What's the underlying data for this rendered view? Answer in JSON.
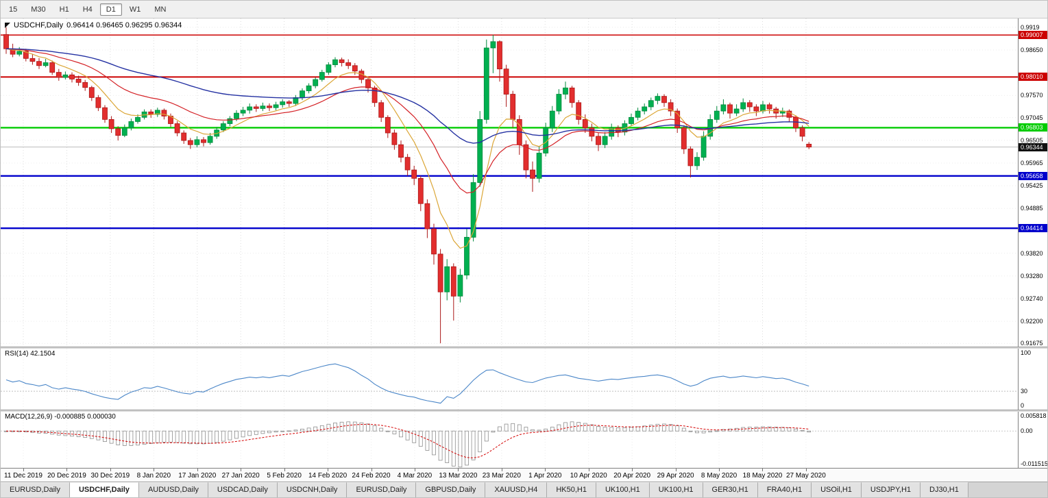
{
  "toolbar": {
    "timeframes": [
      {
        "label": "15",
        "active": false
      },
      {
        "label": "M30",
        "active": false
      },
      {
        "label": "H1",
        "active": false
      },
      {
        "label": "H4",
        "active": false
      },
      {
        "label": "D1",
        "active": true
      },
      {
        "label": "W1",
        "active": false
      },
      {
        "label": "MN",
        "active": false
      }
    ]
  },
  "chart": {
    "title": {
      "symbol_period": "USDCHF,Daily",
      "ohlc": "0.96414 0.96465 0.96295 0.96344"
    },
    "colors": {
      "bull": "#00b050",
      "bull_border": "#00893c",
      "bear": "#e22e2e",
      "bear_border": "#ab1717",
      "ma_fast": "#dba636",
      "ma_mid": "#d42025",
      "ma_slow": "#2431a2",
      "hline_red": "#cc0000",
      "hline_green": "#00cc00",
      "hline_blue": "#0000cc",
      "bid_tag": "#111111",
      "bid_line": "#bdbdbd",
      "rsi_line": "#4a86c8",
      "macd_bar_stroke": "#8c8c8c",
      "macd_signal": "#d40000",
      "grid": "#dcdcdc"
    },
    "price_axis_labels": [
      "0.9919",
      "0.98650",
      "0.97570",
      "0.97045",
      "0.96505",
      "0.95965",
      "0.95425",
      "0.94885",
      "0.93820",
      "0.93280",
      "0.92740",
      "0.92200",
      "0.91675"
    ],
    "hlines": [
      {
        "price": 0.99007,
        "label": "0.99007",
        "color": "#cc0000",
        "width": 1.4
      },
      {
        "price": 0.9801,
        "label": "0.98010",
        "color": "#cc0000",
        "width": 2
      },
      {
        "price": 0.96803,
        "label": "0.96803",
        "color": "#00cc00",
        "width": 2.4
      },
      {
        "price": 0.95658,
        "label": "0.95658",
        "color": "#0000cc",
        "width": 2.4
      },
      {
        "price": 0.94414,
        "label": "0.94414",
        "color": "#0000cc",
        "width": 2.4
      }
    ],
    "bid": {
      "price": 0.96344,
      "label": "0.96344"
    },
    "dates": [
      "11 Dec 2019",
      "20 Dec 2019",
      "30 Dec 2019",
      "8 Jan 2020",
      "17 Jan 2020",
      "27 Jan 2020",
      "5 Feb 2020",
      "14 Feb 2020",
      "24 Feb 2020",
      "4 Mar 2020",
      "13 Mar 2020",
      "23 Mar 2020",
      "1 Apr 2020",
      "10 Apr 2020",
      "20 Apr 2020",
      "29 Apr 2020",
      "8 May 2020",
      "18 May 2020",
      "27 May 2020"
    ],
    "rsi": {
      "title": "RSI(14) 42.1504",
      "period": 14,
      "axis_labels": [
        {
          "value": 100,
          "text": "100"
        },
        {
          "value": 30,
          "text": "30"
        },
        {
          "value": 0,
          "text": "0"
        }
      ],
      "level": 30
    },
    "macd": {
      "title": "MACD(12,26,9) -0.000885 0.000030",
      "fast": 12,
      "slow": 26,
      "signal": 9,
      "axis_labels": [
        {
          "value": 0.005818,
          "text": "0.005818"
        },
        {
          "value": 0,
          "text": "0.00"
        },
        {
          "value": -0.011515,
          "text": "-0.011515"
        }
      ]
    },
    "candles": [
      [
        0.9902,
        0.9919,
        0.9856,
        0.9868
      ],
      [
        0.9868,
        0.988,
        0.9848,
        0.9855
      ],
      [
        0.9855,
        0.9872,
        0.985,
        0.9862
      ],
      [
        0.9862,
        0.9868,
        0.9838,
        0.9845
      ],
      [
        0.9845,
        0.9856,
        0.983,
        0.9838
      ],
      [
        0.9838,
        0.9846,
        0.982,
        0.9828
      ],
      [
        0.9828,
        0.9844,
        0.9824,
        0.9835
      ],
      [
        0.9835,
        0.984,
        0.9806,
        0.9812
      ],
      [
        0.9812,
        0.982,
        0.9792,
        0.98
      ],
      [
        0.98,
        0.9814,
        0.9795,
        0.9806
      ],
      [
        0.9806,
        0.9812,
        0.9788,
        0.9796
      ],
      [
        0.9796,
        0.9804,
        0.978,
        0.9788
      ],
      [
        0.9788,
        0.9794,
        0.9768,
        0.9776
      ],
      [
        0.9776,
        0.978,
        0.9744,
        0.9752
      ],
      [
        0.9752,
        0.9758,
        0.972,
        0.9728
      ],
      [
        0.9728,
        0.9734,
        0.9692,
        0.97
      ],
      [
        0.97,
        0.9708,
        0.9668,
        0.9678
      ],
      [
        0.9678,
        0.9684,
        0.965,
        0.9662
      ],
      [
        0.9662,
        0.9688,
        0.9658,
        0.968
      ],
      [
        0.968,
        0.9702,
        0.9674,
        0.9695
      ],
      [
        0.9695,
        0.9712,
        0.969,
        0.9705
      ],
      [
        0.9705,
        0.9724,
        0.97,
        0.9718
      ],
      [
        0.9718,
        0.9724,
        0.9704,
        0.9712
      ],
      [
        0.9712,
        0.9728,
        0.9706,
        0.9722
      ],
      [
        0.9722,
        0.9726,
        0.97,
        0.9708
      ],
      [
        0.9708,
        0.9714,
        0.9682,
        0.969
      ],
      [
        0.969,
        0.9696,
        0.966,
        0.9668
      ],
      [
        0.9668,
        0.9674,
        0.9642,
        0.965
      ],
      [
        0.965,
        0.9656,
        0.963,
        0.964
      ],
      [
        0.964,
        0.966,
        0.9634,
        0.9652
      ],
      [
        0.9652,
        0.9658,
        0.9636,
        0.9645
      ],
      [
        0.9645,
        0.9668,
        0.964,
        0.966
      ],
      [
        0.966,
        0.9682,
        0.9654,
        0.9675
      ],
      [
        0.9675,
        0.9696,
        0.967,
        0.969
      ],
      [
        0.969,
        0.9708,
        0.9684,
        0.9702
      ],
      [
        0.9702,
        0.9722,
        0.9696,
        0.9715
      ],
      [
        0.9715,
        0.973,
        0.9708,
        0.9722
      ],
      [
        0.9722,
        0.9738,
        0.9714,
        0.973
      ],
      [
        0.973,
        0.9736,
        0.9718,
        0.9726
      ],
      [
        0.9726,
        0.974,
        0.972,
        0.9732
      ],
      [
        0.9732,
        0.9738,
        0.972,
        0.9728
      ],
      [
        0.9728,
        0.9742,
        0.9722,
        0.9735
      ],
      [
        0.9735,
        0.9748,
        0.9728,
        0.9742
      ],
      [
        0.9742,
        0.9746,
        0.973,
        0.9738
      ],
      [
        0.9738,
        0.9758,
        0.9732,
        0.9752
      ],
      [
        0.9752,
        0.9774,
        0.9746,
        0.9768
      ],
      [
        0.9768,
        0.9786,
        0.9762,
        0.978
      ],
      [
        0.978,
        0.98,
        0.9774,
        0.9795
      ],
      [
        0.9795,
        0.9818,
        0.979,
        0.9812
      ],
      [
        0.9812,
        0.9836,
        0.9806,
        0.983
      ],
      [
        0.983,
        0.9848,
        0.9824,
        0.9842
      ],
      [
        0.9842,
        0.9847,
        0.9826,
        0.9835
      ],
      [
        0.9835,
        0.9843,
        0.982,
        0.9828
      ],
      [
        0.9828,
        0.9834,
        0.9806,
        0.9815
      ],
      [
        0.9815,
        0.982,
        0.9786,
        0.9795
      ],
      [
        0.9795,
        0.98,
        0.9764,
        0.9775
      ],
      [
        0.9775,
        0.978,
        0.973,
        0.974
      ],
      [
        0.974,
        0.9746,
        0.9694,
        0.9705
      ],
      [
        0.9705,
        0.971,
        0.9656,
        0.9668
      ],
      [
        0.9668,
        0.9676,
        0.9628,
        0.964
      ],
      [
        0.964,
        0.965,
        0.9598,
        0.961
      ],
      [
        0.961,
        0.9618,
        0.9566,
        0.958
      ],
      [
        0.958,
        0.959,
        0.9544,
        0.956
      ],
      [
        0.956,
        0.9566,
        0.9482,
        0.95
      ],
      [
        0.95,
        0.951,
        0.9418,
        0.944
      ],
      [
        0.944,
        0.9452,
        0.9355,
        0.938
      ],
      [
        0.938,
        0.9392,
        0.9168,
        0.929
      ],
      [
        0.929,
        0.9368,
        0.927,
        0.935
      ],
      [
        0.935,
        0.9358,
        0.9222,
        0.928
      ],
      [
        0.928,
        0.9345,
        0.9265,
        0.933
      ],
      [
        0.933,
        0.944,
        0.932,
        0.942
      ],
      [
        0.942,
        0.957,
        0.941,
        0.955
      ],
      [
        0.955,
        0.972,
        0.954,
        0.97
      ],
      [
        0.97,
        0.989,
        0.969,
        0.987
      ],
      [
        0.987,
        0.9901,
        0.981,
        0.9885
      ],
      [
        0.9885,
        0.9888,
        0.979,
        0.982
      ],
      [
        0.982,
        0.983,
        0.973,
        0.976
      ],
      [
        0.976,
        0.9768,
        0.968,
        0.97
      ],
      [
        0.97,
        0.971,
        0.9616,
        0.964
      ],
      [
        0.964,
        0.965,
        0.956,
        0.958
      ],
      [
        0.958,
        0.96,
        0.9528,
        0.956
      ],
      [
        0.956,
        0.9635,
        0.955,
        0.962
      ],
      [
        0.962,
        0.9692,
        0.9612,
        0.968
      ],
      [
        0.968,
        0.9732,
        0.967,
        0.972
      ],
      [
        0.972,
        0.9772,
        0.9712,
        0.976
      ],
      [
        0.976,
        0.979,
        0.9748,
        0.9775
      ],
      [
        0.9775,
        0.978,
        0.9728,
        0.974
      ],
      [
        0.974,
        0.9746,
        0.9688,
        0.97
      ],
      [
        0.97,
        0.9712,
        0.9668,
        0.968
      ],
      [
        0.968,
        0.969,
        0.9648,
        0.966
      ],
      [
        0.966,
        0.9668,
        0.9625,
        0.964
      ],
      [
        0.964,
        0.967,
        0.9632,
        0.966
      ],
      [
        0.966,
        0.969,
        0.9652,
        0.968
      ],
      [
        0.968,
        0.9686,
        0.9658,
        0.967
      ],
      [
        0.967,
        0.9698,
        0.9662,
        0.969
      ],
      [
        0.969,
        0.9714,
        0.9684,
        0.9705
      ],
      [
        0.9705,
        0.9728,
        0.9698,
        0.972
      ],
      [
        0.972,
        0.9738,
        0.9712,
        0.973
      ],
      [
        0.973,
        0.9752,
        0.9722,
        0.9745
      ],
      [
        0.9745,
        0.9762,
        0.9736,
        0.9755
      ],
      [
        0.9755,
        0.976,
        0.973,
        0.974
      ],
      [
        0.974,
        0.9748,
        0.9708,
        0.972
      ],
      [
        0.972,
        0.9726,
        0.9668,
        0.968
      ],
      [
        0.968,
        0.9686,
        0.9618,
        0.963
      ],
      [
        0.963,
        0.9636,
        0.9562,
        0.959
      ],
      [
        0.959,
        0.9622,
        0.958,
        0.961
      ],
      [
        0.961,
        0.9672,
        0.9602,
        0.966
      ],
      [
        0.966,
        0.9712,
        0.9652,
        0.97
      ],
      [
        0.97,
        0.9732,
        0.9692,
        0.972
      ],
      [
        0.972,
        0.9748,
        0.9712,
        0.9735
      ],
      [
        0.9735,
        0.974,
        0.9702,
        0.9715
      ],
      [
        0.9715,
        0.9736,
        0.9708,
        0.9725
      ],
      [
        0.9725,
        0.975,
        0.9718,
        0.974
      ],
      [
        0.974,
        0.9746,
        0.9718,
        0.973
      ],
      [
        0.973,
        0.9736,
        0.9708,
        0.972
      ],
      [
        0.972,
        0.9744,
        0.9714,
        0.9735
      ],
      [
        0.9735,
        0.974,
        0.9714,
        0.9725
      ],
      [
        0.9725,
        0.973,
        0.9702,
        0.9715
      ],
      [
        0.9715,
        0.9728,
        0.9706,
        0.972
      ],
      [
        0.972,
        0.9724,
        0.9694,
        0.9705
      ],
      [
        0.9705,
        0.971,
        0.967,
        0.968
      ],
      [
        0.968,
        0.9686,
        0.9648,
        0.966
      ],
      [
        0.96414,
        0.96465,
        0.96295,
        0.96344
      ]
    ]
  },
  "tabs": {
    "items": [
      {
        "label": "EURUSD,Daily",
        "active": false
      },
      {
        "label": "USDCHF,Daily",
        "active": true
      },
      {
        "label": "AUDUSD,Daily",
        "active": false
      },
      {
        "label": "USDCAD,Daily",
        "active": false
      },
      {
        "label": "USDCNH,Daily",
        "active": false
      },
      {
        "label": "EURUSD,Daily",
        "active": false
      },
      {
        "label": "GBPUSD,Daily",
        "active": false
      },
      {
        "label": "XAUUSD,H4",
        "active": false
      },
      {
        "label": "HK50,H1",
        "active": false
      },
      {
        "label": "UK100,H1",
        "active": false
      },
      {
        "label": "UK100,H1",
        "active": false
      },
      {
        "label": "GER30,H1",
        "active": false
      },
      {
        "label": "FRA40,H1",
        "active": false
      },
      {
        "label": "USOil,H1",
        "active": false
      },
      {
        "label": "USDJPY,H1",
        "active": false
      },
      {
        "label": "DJ30,H1",
        "active": false
      }
    ]
  }
}
